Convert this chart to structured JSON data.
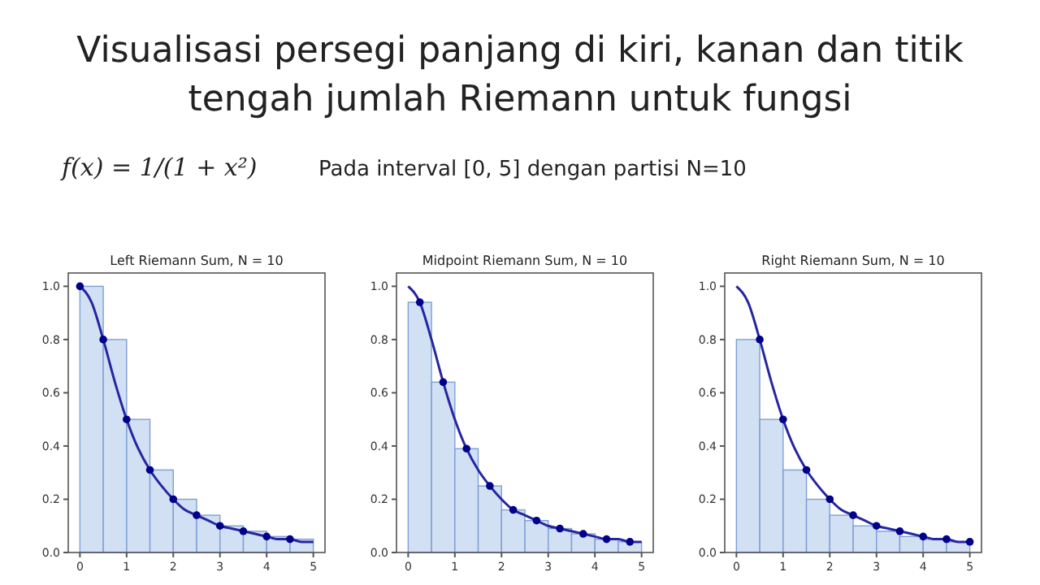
{
  "chart_data": [
    {
      "type": "other",
      "title": "Visualisasi persegi panjang di kiri, kanan dan titik\ntengah jumlah Riemann untuk fungsi",
      "annotations": [
        "f(x) = 1/(1 + x²)",
        "Pada interval [0, 5] dengan partisi N=10"
      ]
    },
    {
      "type": "histogram",
      "title": "Left Riemann Sum, N = 10",
      "xlim": [
        -0.25,
        5.25
      ],
      "ylim": [
        0,
        1.05
      ],
      "xticks": [
        0,
        1,
        2,
        3,
        4,
        5
      ],
      "yticks": [
        {
          "value": 0,
          "label": "0.0"
        },
        {
          "value": 0.2,
          "label": "0.2"
        },
        {
          "value": 0.4,
          "label": "0.4"
        },
        {
          "value": 0.6,
          "label": "0.6"
        },
        {
          "value": 0.8,
          "label": "0.8"
        },
        {
          "value": 1,
          "label": "1.0"
        }
      ],
      "series": [
        {
          "type": "histogram",
          "color": "#c9daf0",
          "bins": [
            0,
            0.5,
            1,
            1.5,
            2,
            2.5,
            3,
            3.5,
            4,
            4.5,
            5
          ],
          "values": [
            1,
            0.8,
            0.5,
            0.31,
            0.2,
            0.14,
            0.1,
            0.08,
            0.06,
            0.05
          ]
        },
        {
          "type": "line",
          "color": "#2626a0",
          "x": [
            0,
            0.25,
            0.5,
            0.75,
            1,
            1.25,
            1.5,
            1.75,
            2,
            2.25,
            2.5,
            2.75,
            3,
            3.25,
            3.5,
            3.75,
            4,
            4.25,
            4.5,
            4.75,
            5
          ],
          "values": [
            1,
            0.94,
            0.8,
            0.64,
            0.5,
            0.39,
            0.31,
            0.25,
            0.2,
            0.16,
            0.14,
            0.12,
            0.1,
            0.09,
            0.08,
            0.07,
            0.06,
            0.05,
            0.05,
            0.04,
            0.04
          ]
        },
        {
          "type": "scatter",
          "color": "#00008b",
          "marker": "circle",
          "x": [
            0,
            0.5,
            1,
            1.5,
            2,
            2.5,
            3,
            3.5,
            4,
            4.5
          ],
          "values": [
            1,
            0.8,
            0.5,
            0.31,
            0.2,
            0.14,
            0.1,
            0.08,
            0.06,
            0.05
          ]
        }
      ]
    },
    {
      "type": "histogram",
      "title": "Midpoint Riemann Sum, N = 10",
      "xlim": [
        -0.25,
        5.25
      ],
      "ylim": [
        0,
        1.05
      ],
      "xticks": [
        0,
        1,
        2,
        3,
        4,
        5
      ],
      "yticks": [
        {
          "value": 0,
          "label": "0.0"
        },
        {
          "value": 0.2,
          "label": "0.2"
        },
        {
          "value": 0.4,
          "label": "0.4"
        },
        {
          "value": 0.6,
          "label": "0.6"
        },
        {
          "value": 0.8,
          "label": "0.8"
        },
        {
          "value": 1,
          "label": "1.0"
        }
      ],
      "series": [
        {
          "type": "histogram",
          "color": "#c9daf0",
          "bins": [
            0,
            0.5,
            1,
            1.5,
            2,
            2.5,
            3,
            3.5,
            4,
            4.5,
            5
          ],
          "values": [
            0.94,
            0.64,
            0.39,
            0.25,
            0.16,
            0.12,
            0.09,
            0.07,
            0.05,
            0.04
          ]
        },
        {
          "type": "line",
          "color": "#2626a0",
          "x": [
            0,
            0.25,
            0.5,
            0.75,
            1,
            1.25,
            1.5,
            1.75,
            2,
            2.25,
            2.5,
            2.75,
            3,
            3.25,
            3.5,
            3.75,
            4,
            4.25,
            4.5,
            4.75,
            5
          ],
          "values": [
            1,
            0.94,
            0.8,
            0.64,
            0.5,
            0.39,
            0.31,
            0.25,
            0.2,
            0.16,
            0.14,
            0.12,
            0.1,
            0.09,
            0.08,
            0.07,
            0.06,
            0.05,
            0.05,
            0.04,
            0.04
          ]
        },
        {
          "type": "scatter",
          "color": "#00008b",
          "marker": "circle",
          "x": [
            0.25,
            0.75,
            1.25,
            1.75,
            2.25,
            2.75,
            3.25,
            3.75,
            4.25,
            4.75
          ],
          "values": [
            0.94,
            0.64,
            0.39,
            0.25,
            0.16,
            0.12,
            0.09,
            0.07,
            0.05,
            0.04
          ]
        }
      ]
    },
    {
      "type": "histogram",
      "title": "Right Riemann Sum, N = 10",
      "xlim": [
        -0.25,
        5.25
      ],
      "ylim": [
        0,
        1.05
      ],
      "xticks": [
        0,
        1,
        2,
        3,
        4,
        5
      ],
      "yticks": [
        {
          "value": 0,
          "label": "0.0"
        },
        {
          "value": 0.2,
          "label": "0.2"
        },
        {
          "value": 0.4,
          "label": "0.4"
        },
        {
          "value": 0.6,
          "label": "0.6"
        },
        {
          "value": 0.8,
          "label": "0.8"
        },
        {
          "value": 1,
          "label": "1.0"
        }
      ],
      "series": [
        {
          "type": "histogram",
          "color": "#c9daf0",
          "bins": [
            0,
            0.5,
            1,
            1.5,
            2,
            2.5,
            3,
            3.5,
            4,
            4.5,
            5
          ],
          "values": [
            0.8,
            0.5,
            0.31,
            0.2,
            0.14,
            0.1,
            0.08,
            0.06,
            0.05,
            0.04
          ]
        },
        {
          "type": "line",
          "color": "#2626a0",
          "x": [
            0,
            0.25,
            0.5,
            0.75,
            1,
            1.25,
            1.5,
            1.75,
            2,
            2.25,
            2.5,
            2.75,
            3,
            3.25,
            3.5,
            3.75,
            4,
            4.25,
            4.5,
            4.75,
            5
          ],
          "values": [
            1,
            0.94,
            0.8,
            0.64,
            0.5,
            0.39,
            0.31,
            0.25,
            0.2,
            0.16,
            0.14,
            0.12,
            0.1,
            0.09,
            0.08,
            0.07,
            0.06,
            0.05,
            0.05,
            0.04,
            0.04
          ]
        },
        {
          "type": "scatter",
          "color": "#00008b",
          "marker": "circle",
          "x": [
            0.5,
            1,
            1.5,
            2,
            2.5,
            3,
            3.5,
            4,
            4.5,
            5
          ],
          "values": [
            0.8,
            0.5,
            0.31,
            0.2,
            0.14,
            0.1,
            0.08,
            0.06,
            0.05,
            0.04
          ]
        }
      ]
    }
  ]
}
